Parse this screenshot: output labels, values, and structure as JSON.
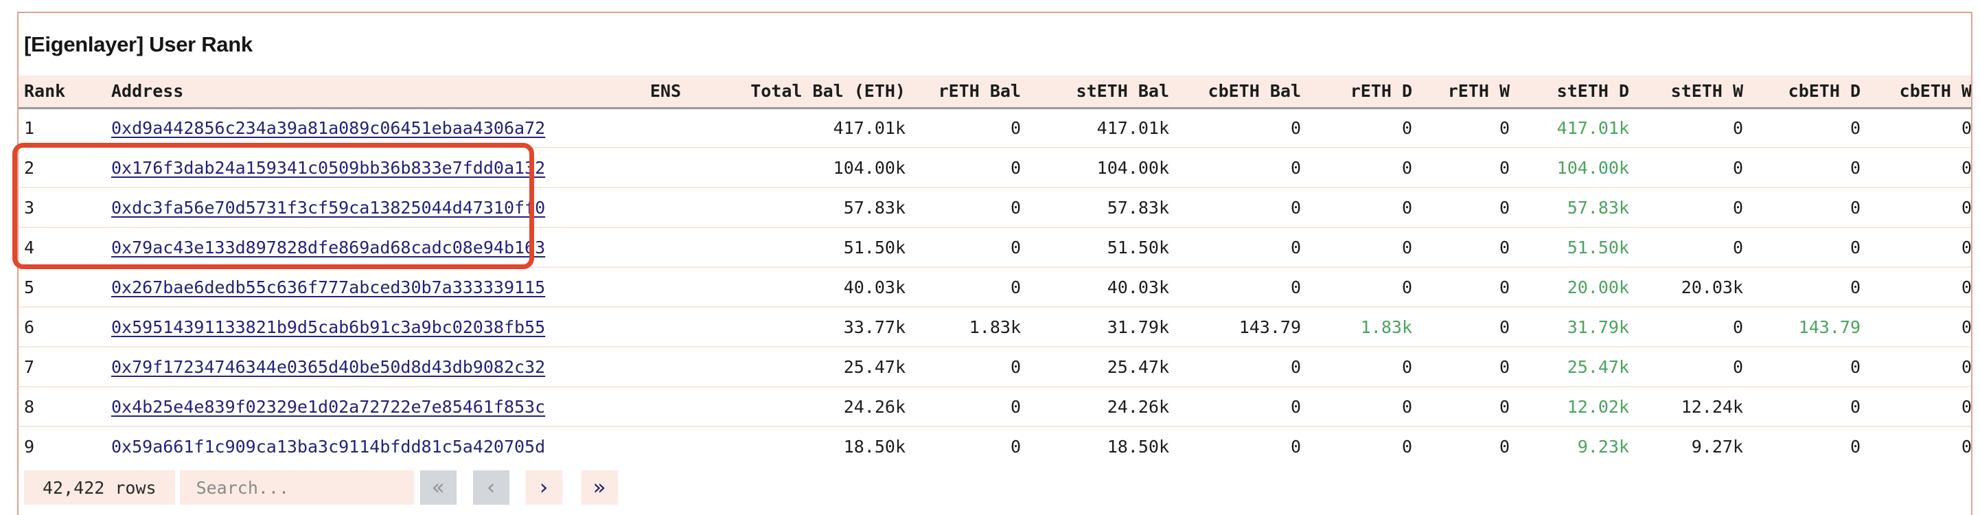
{
  "title": "[Eigenlayer] User Rank",
  "colors": {
    "panel_border": "#e2a28c",
    "header_bg": "#fbebe4",
    "link_navy": "#23237b",
    "positive_green": "#4ba45f",
    "annotation_red": "#e0472b",
    "disabled_btn_bg": "#d3d6da",
    "pill_bg": "#fbebe4"
  },
  "table": {
    "columns": [
      {
        "key": "rank",
        "label": "Rank",
        "align": "left"
      },
      {
        "key": "address",
        "label": "Address",
        "align": "left",
        "link": true
      },
      {
        "key": "ens",
        "label": "ENS",
        "align": "right"
      },
      {
        "key": "total",
        "label": "Total Bal (ETH)",
        "align": "right"
      },
      {
        "key": "reth_bal",
        "label": "rETH Bal",
        "align": "right"
      },
      {
        "key": "steth_bal",
        "label": "stETH Bal",
        "align": "right"
      },
      {
        "key": "cbeth_bal",
        "label": "cbETH Bal",
        "align": "right"
      },
      {
        "key": "reth_d",
        "label": "rETH D",
        "align": "right",
        "green_nonzero": true
      },
      {
        "key": "reth_w",
        "label": "rETH W",
        "align": "right"
      },
      {
        "key": "steth_d",
        "label": "stETH D",
        "align": "right",
        "green_nonzero": true
      },
      {
        "key": "steth_w",
        "label": "stETH W",
        "align": "right"
      },
      {
        "key": "cbeth_d",
        "label": "cbETH D",
        "align": "right",
        "green_nonzero": true
      },
      {
        "key": "cbeth_w",
        "label": "cbETH W",
        "align": "right"
      }
    ],
    "rows": [
      [
        "1",
        "0xd9a442856c234a39a81a089c06451ebaa4306a72",
        "",
        "417.01k",
        "0",
        "417.01k",
        "0",
        "0",
        "0",
        "417.01k",
        "0",
        "0",
        "0"
      ],
      [
        "2",
        "0x176f3dab24a159341c0509bb36b833e7fdd0a132",
        "",
        "104.00k",
        "0",
        "104.00k",
        "0",
        "0",
        "0",
        "104.00k",
        "0",
        "0",
        "0"
      ],
      [
        "3",
        "0xdc3fa56e70d5731f3cf59ca13825044d47310ff0",
        "",
        "57.83k",
        "0",
        "57.83k",
        "0",
        "0",
        "0",
        "57.83k",
        "0",
        "0",
        "0"
      ],
      [
        "4",
        "0x79ac43e133d897828dfe869ad68cadc08e94b163",
        "",
        "51.50k",
        "0",
        "51.50k",
        "0",
        "0",
        "0",
        "51.50k",
        "0",
        "0",
        "0"
      ],
      [
        "5",
        "0x267bae6dedb55c636f777abced30b7a333339115",
        "",
        "40.03k",
        "0",
        "40.03k",
        "0",
        "0",
        "0",
        "20.00k",
        "20.03k",
        "0",
        "0"
      ],
      [
        "6",
        "0x59514391133821b9d5cab6b91c3a9bc02038fb55",
        "",
        "33.77k",
        "1.83k",
        "31.79k",
        "143.79",
        "1.83k",
        "0",
        "31.79k",
        "0",
        "143.79",
        "0"
      ],
      [
        "7",
        "0x79f17234746344e0365d40be50d8d43db9082c32",
        "",
        "25.47k",
        "0",
        "25.47k",
        "0",
        "0",
        "0",
        "25.47k",
        "0",
        "0",
        "0"
      ],
      [
        "8",
        "0x4b25e4e839f02329e1d02a72722e7e85461f853c",
        "",
        "24.26k",
        "0",
        "24.26k",
        "0",
        "0",
        "0",
        "12.02k",
        "12.24k",
        "0",
        "0"
      ],
      [
        "9",
        "0x59a661f1c909ca13ba3c9114bfdd81c5a420705d",
        "",
        "18.50k",
        "0",
        "18.50k",
        "0",
        "0",
        "0",
        "9.23k",
        "9.27k",
        "0",
        "0"
      ]
    ]
  },
  "footer": {
    "rows_count": "42,422 rows",
    "search_placeholder": "Search...",
    "pagination": [
      {
        "name": "first-page-button",
        "icon": "chevrons-left-icon",
        "glyph": "«",
        "disabled": true
      },
      {
        "name": "prev-page-button",
        "icon": "chevron-left-icon",
        "glyph": "‹",
        "disabled": true
      },
      {
        "name": "next-page-button",
        "icon": "chevron-right-icon",
        "glyph": "›",
        "disabled": false
      },
      {
        "name": "last-page-button",
        "icon": "chevrons-right-icon",
        "glyph": "»",
        "disabled": false
      }
    ]
  },
  "annotation": {
    "type": "highlight-box",
    "highlighted_ranks": [
      "2",
      "3",
      "4"
    ]
  }
}
